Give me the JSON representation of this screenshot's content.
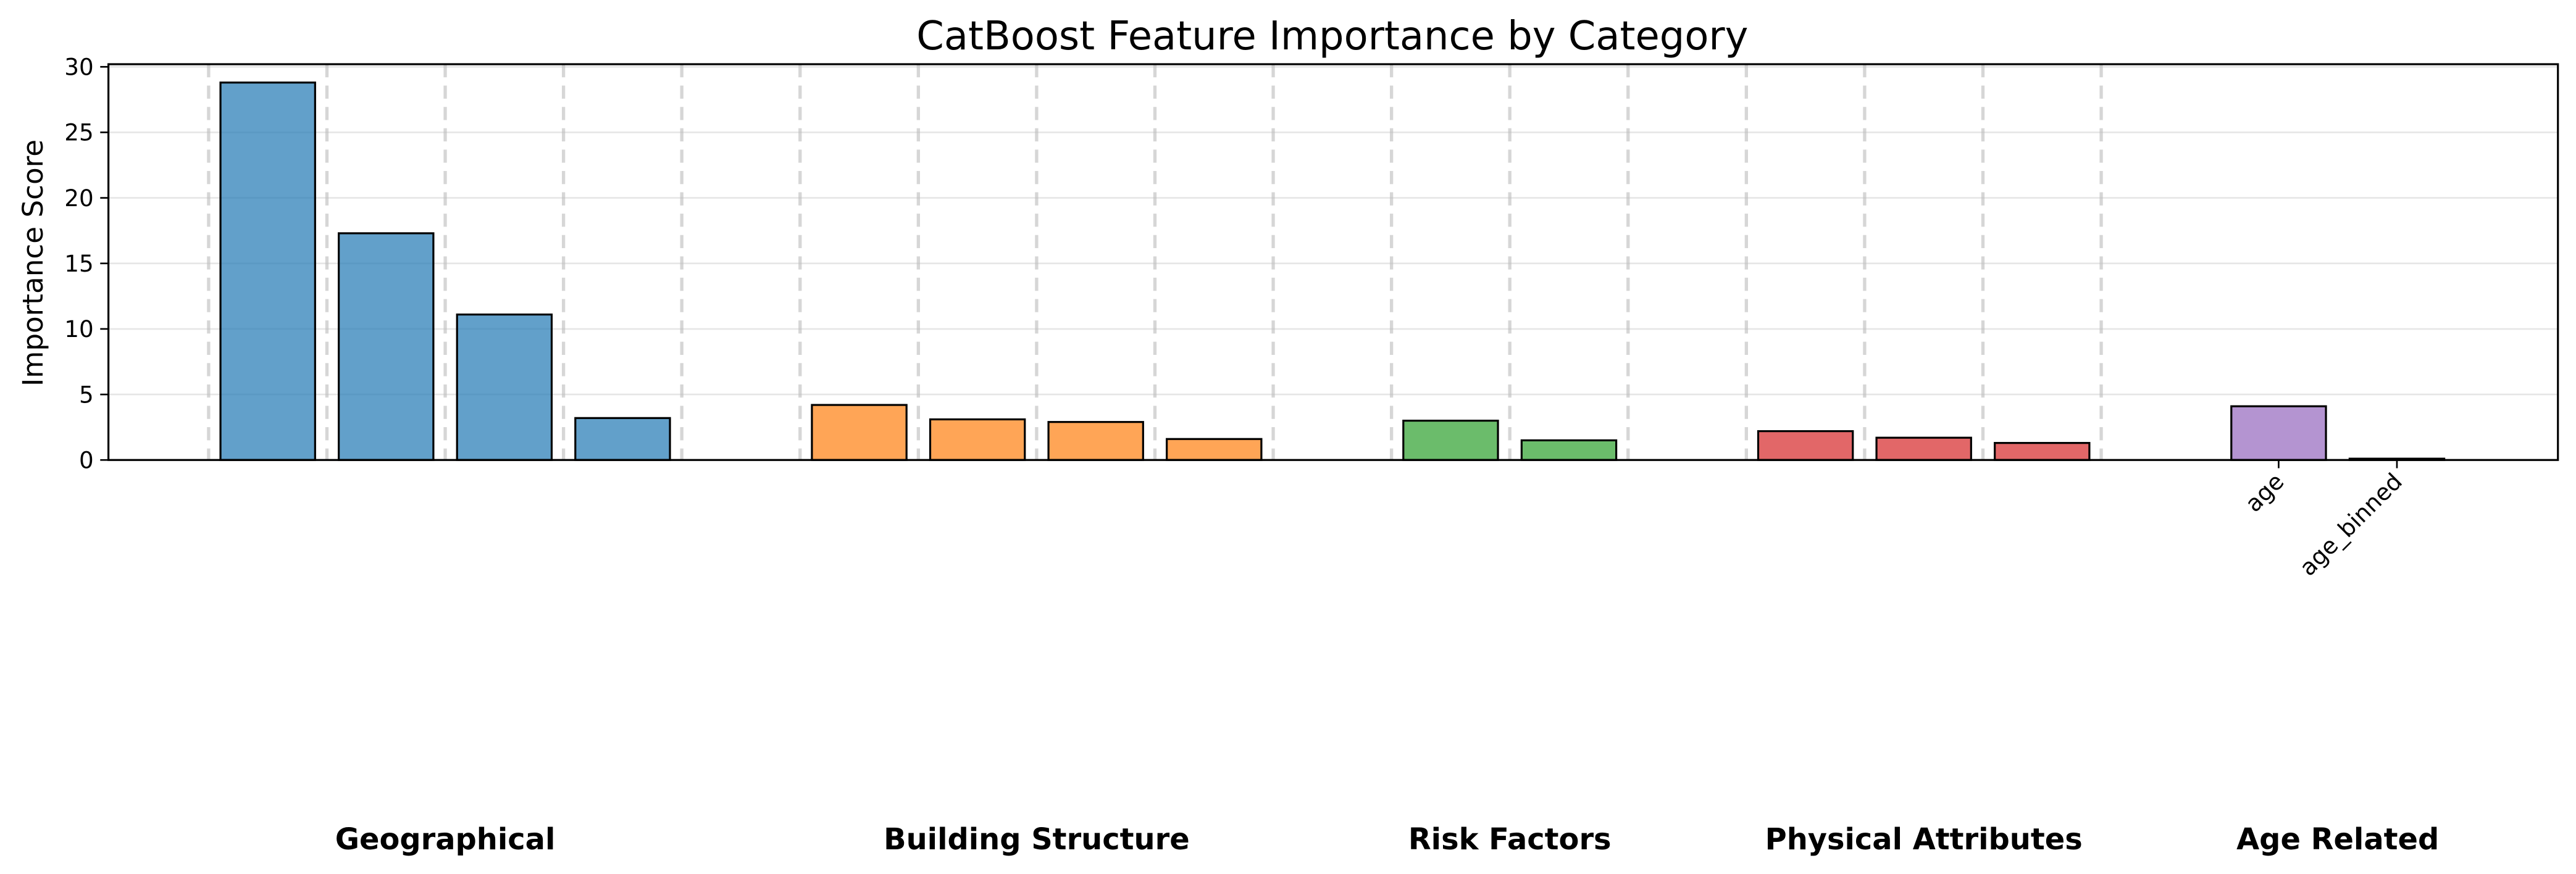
{
  "chart_data": {
    "type": "bar",
    "title": "CatBoost Feature Importance by Category",
    "y_label": "Importance Score",
    "categories": [
      null,
      null,
      null,
      null,
      null,
      null,
      null,
      null,
      null,
      null,
      null,
      null,
      null,
      null,
      null,
      null,
      null,
      "age",
      "age_binned"
    ],
    "values": [
      28.8,
      17.3,
      11.1,
      3.2,
      null,
      4.2,
      3.1,
      2.9,
      1.6,
      null,
      3.0,
      1.5,
      null,
      2.2,
      1.7,
      1.3,
      null,
      4.1,
      0.1
    ],
    "colors": [
      "#1f77b4",
      "#1f77b4",
      "#1f77b4",
      "#1f77b4",
      null,
      "#ff7f0e",
      "#ff7f0e",
      "#ff7f0e",
      "#ff7f0e",
      null,
      "#2ca02c",
      "#2ca02c",
      null,
      "#d62728",
      "#d62728",
      "#d62728",
      null,
      "#9467bd",
      "#9467bd"
    ],
    "groups": [
      {
        "name": "Geographical",
        "color": "#1f77b4"
      },
      {
        "name": "Building Structure",
        "color": "#ff7f0e"
      },
      {
        "name": "Risk Factors",
        "color": "#2ca02c"
      },
      {
        "name": "Physical Attributes",
        "color": "#d62728"
      },
      {
        "name": "Age Related",
        "color": "#9467bd"
      }
    ],
    "ylim": [
      0,
      30.2
    ],
    "yticks": [
      0,
      5,
      10,
      15,
      20,
      25,
      30
    ],
    "grid": true
  }
}
